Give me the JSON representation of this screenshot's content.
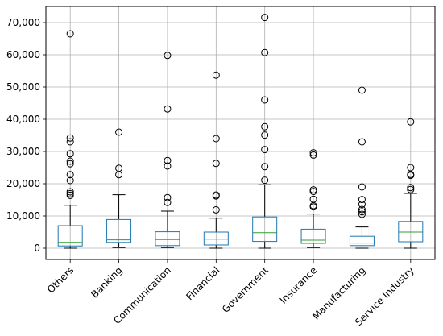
{
  "chart_data": {
    "type": "box",
    "title": "",
    "xlabel": "",
    "ylabel": "",
    "ylim": [
      -3500,
      75000
    ],
    "yticks": [
      0,
      10000,
      20000,
      30000,
      40000,
      50000,
      60000,
      70000
    ],
    "ytick_labels": [
      "0",
      "10,000",
      "20,000",
      "30,000",
      "40,000",
      "50,000",
      "60,000",
      "70,000"
    ],
    "grid": true,
    "colors": {
      "box": "#1f77b4",
      "median": "#2ca02c",
      "whisker": "#000000",
      "grid": "#b0b0b0",
      "outlier": "#000000"
    },
    "categories": [
      "Others",
      "Banking",
      "Communication",
      "Financial",
      "Government",
      "Insurance",
      "Manufacturing",
      "Service Industry"
    ],
    "boxes": [
      {
        "category": "Others",
        "whisker_low": 0,
        "q1": 700,
        "median": 1800,
        "q3": 7000,
        "whisker_high": 13300,
        "outliers": [
          16400,
          16900,
          17500,
          21000,
          22800,
          26200,
          27000,
          29300,
          33000,
          34200,
          66500
        ]
      },
      {
        "category": "Banking",
        "whisker_low": 200,
        "q1": 1800,
        "median": 2600,
        "q3": 8900,
        "whisker_high": 16600,
        "outliers": [
          22800,
          24800,
          36000
        ]
      },
      {
        "category": "Communication",
        "whisker_low": 200,
        "q1": 800,
        "median": 2700,
        "q3": 5100,
        "whisker_high": 11500,
        "outliers": [
          14200,
          15700,
          25500,
          27200,
          43200,
          59800
        ]
      },
      {
        "category": "Financial",
        "whisker_low": 0,
        "q1": 1000,
        "median": 2800,
        "q3": 5000,
        "whisker_high": 9300,
        "outliers": [
          11900,
          16200,
          16500,
          26300,
          34000,
          53700
        ]
      },
      {
        "category": "Government",
        "whisker_low": 0,
        "q1": 2100,
        "median": 4800,
        "q3": 9700,
        "whisker_high": 19700,
        "outliers": [
          21100,
          25300,
          30600,
          35100,
          37700,
          46000,
          60700,
          71600
        ]
      },
      {
        "category": "Insurance",
        "whisker_low": 200,
        "q1": 1500,
        "median": 2500,
        "q3": 5900,
        "whisker_high": 10600,
        "outliers": [
          12800,
          13200,
          15200,
          17600,
          18100,
          28900,
          29600
        ]
      },
      {
        "category": "Manufacturing",
        "whisker_low": 0,
        "q1": 800,
        "median": 1600,
        "q3": 3700,
        "whisker_high": 6600,
        "outliers": [
          10500,
          11300,
          12000,
          13600,
          15100,
          19000,
          33000,
          49000
        ]
      },
      {
        "category": "Service Industry",
        "whisker_low": 0,
        "q1": 2000,
        "median": 5000,
        "q3": 8300,
        "whisker_high": 17000,
        "outliers": [
          18200,
          18800,
          22600,
          22900,
          25000,
          39200
        ]
      }
    ]
  }
}
